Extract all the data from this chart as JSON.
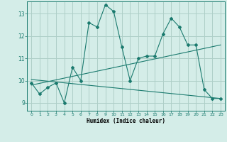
{
  "xlabel": "Humidex (Indice chaleur)",
  "bg_color": "#d4ede8",
  "line_color": "#1a7a6e",
  "grid_color": "#aecfc8",
  "x_ticks": [
    0,
    1,
    2,
    3,
    4,
    5,
    6,
    7,
    8,
    9,
    10,
    11,
    12,
    13,
    14,
    15,
    16,
    17,
    18,
    19,
    20,
    21,
    22,
    23
  ],
  "y_ticks": [
    9,
    10,
    11,
    12,
    13
  ],
  "ylim": [
    8.65,
    13.55
  ],
  "xlim": [
    -0.5,
    23.5
  ],
  "series1_x": [
    0,
    1,
    2,
    3,
    4,
    5,
    6,
    7,
    8,
    9,
    10,
    11,
    12,
    13,
    14,
    15,
    16,
    17,
    18,
    19,
    20,
    21,
    22,
    23
  ],
  "series1_y": [
    9.9,
    9.4,
    9.7,
    9.9,
    9.0,
    10.6,
    10.0,
    12.6,
    12.4,
    13.4,
    13.1,
    11.5,
    10.0,
    11.0,
    11.1,
    11.1,
    12.1,
    12.8,
    12.4,
    11.6,
    11.6,
    9.6,
    9.2,
    9.2
  ],
  "series2_x": [
    0,
    23
  ],
  "series2_y": [
    9.8,
    11.6
  ],
  "series3_x": [
    0,
    23
  ],
  "series3_y": [
    10.05,
    9.2
  ]
}
